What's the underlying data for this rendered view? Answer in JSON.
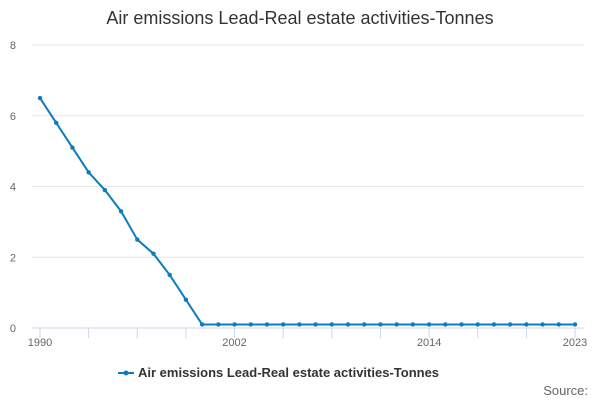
{
  "chart_data": {
    "type": "line",
    "title": "Air emissions Lead-Real estate activities-Tonnes",
    "xlabel": "",
    "ylabel": "",
    "x": [
      1990,
      1991,
      1992,
      1993,
      1994,
      1995,
      1996,
      1997,
      1998,
      1999,
      2000,
      2001,
      2002,
      2003,
      2004,
      2005,
      2006,
      2007,
      2008,
      2009,
      2010,
      2011,
      2012,
      2013,
      2014,
      2015,
      2016,
      2017,
      2018,
      2019,
      2020,
      2021,
      2022,
      2023
    ],
    "xlim": [
      1990,
      2023
    ],
    "ylim": [
      0,
      8
    ],
    "x_tick_labels": [
      1990,
      2002,
      2014,
      2023
    ],
    "y_ticks": [
      0,
      2,
      4,
      6,
      8
    ],
    "grid": true,
    "legend_position": "bottom",
    "series": [
      {
        "name": "Air emissions Lead-Real estate activities-Tonnes",
        "color": "#0c7dbc",
        "values": [
          6.5,
          5.8,
          5.1,
          4.4,
          3.9,
          3.3,
          2.5,
          2.1,
          1.5,
          0.8,
          0.1,
          0.1,
          0.1,
          0.1,
          0.1,
          0.1,
          0.1,
          0.1,
          0.1,
          0.1,
          0.1,
          0.1,
          0.1,
          0.1,
          0.1,
          0.1,
          0.1,
          0.1,
          0.1,
          0.1,
          0.1,
          0.1,
          0.1,
          0.1
        ]
      }
    ]
  },
  "footer": {
    "source_label": "Source:"
  }
}
